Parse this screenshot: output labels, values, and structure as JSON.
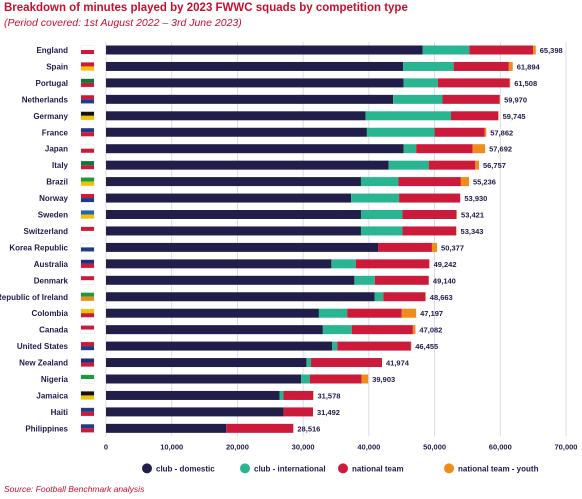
{
  "title": "Breakdown of minutes played by 2023 FWWC squads by competition type",
  "subtitle": "(Period covered: 1st August 2022 – 3rd June 2023)",
  "source": "Source: Football Benchmark analysis",
  "colors": {
    "club_domestic": "#221e4a",
    "club_international": "#2ab592",
    "national_team": "#cc1a3b",
    "national_team_youth": "#f08c18",
    "text": "#1e1b4b",
    "accent": "#c8102e"
  },
  "chart_data": {
    "type": "bar",
    "orientation": "horizontal",
    "stacked": true,
    "xlim": [
      0,
      70000
    ],
    "xticks": [
      "0",
      "10,000",
      "20,000",
      "30,000",
      "40,000",
      "50,000",
      "60,000",
      "70,000"
    ],
    "grid": true,
    "legend_position": "bottom",
    "categories": [
      "England",
      "Spain",
      "Portugal",
      "Netherlands",
      "Germany",
      "France",
      "Japan",
      "Italy",
      "Brazil",
      "Norway",
      "Sweden",
      "Switzerland",
      "Korea Republic",
      "Australia",
      "Denmark",
      "Republic of Ireland",
      "Colombia",
      "Canada",
      "United States",
      "New Zealand",
      "Nigeria",
      "Jamaica",
      "Haiti",
      "Philippines"
    ],
    "total_labels": [
      "65,398",
      "61,894",
      "61,508",
      "59,970",
      "59,745",
      "57,862",
      "57,692",
      "56,757",
      "55,236",
      "53,930",
      "53,421",
      "53,343",
      "50,377",
      "49,242",
      "49,140",
      "48,663",
      "47,197",
      "47,082",
      "46,455",
      "41,974",
      "39,903",
      "31,578",
      "31,492",
      "28,516"
    ],
    "series": [
      {
        "name": "club - domestic",
        "values": [
          48200,
          45200,
          45300,
          43700,
          39500,
          39700,
          45300,
          43000,
          38800,
          37300,
          38800,
          38800,
          41400,
          34300,
          37800,
          40900,
          32400,
          33000,
          34400,
          30500,
          29700,
          26400,
          27000,
          18300
        ]
      },
      {
        "name": "club - international",
        "values": [
          7100,
          7700,
          5200,
          7500,
          13000,
          10300,
          1900,
          6100,
          5700,
          7300,
          6300,
          6300,
          0,
          3700,
          3100,
          1300,
          4300,
          4400,
          800,
          700,
          1300,
          600,
          0,
          0
        ]
      },
      {
        "name": "national team",
        "values": [
          9700,
          8400,
          10900,
          8700,
          7200,
          7600,
          8600,
          7100,
          9500,
          9300,
          8200,
          8200,
          8200,
          11200,
          8200,
          6400,
          8300,
          9300,
          11200,
          10800,
          7900,
          4500,
          4500,
          10200
        ]
      },
      {
        "name": "national team - youth",
        "values": [
          398,
          594,
          108,
          70,
          45,
          262,
          1892,
          557,
          1236,
          30,
          121,
          43,
          777,
          42,
          40,
          63,
          2197,
          382,
          55,
          0,
          1003,
          78,
          0,
          16
        ]
      }
    ]
  }
}
